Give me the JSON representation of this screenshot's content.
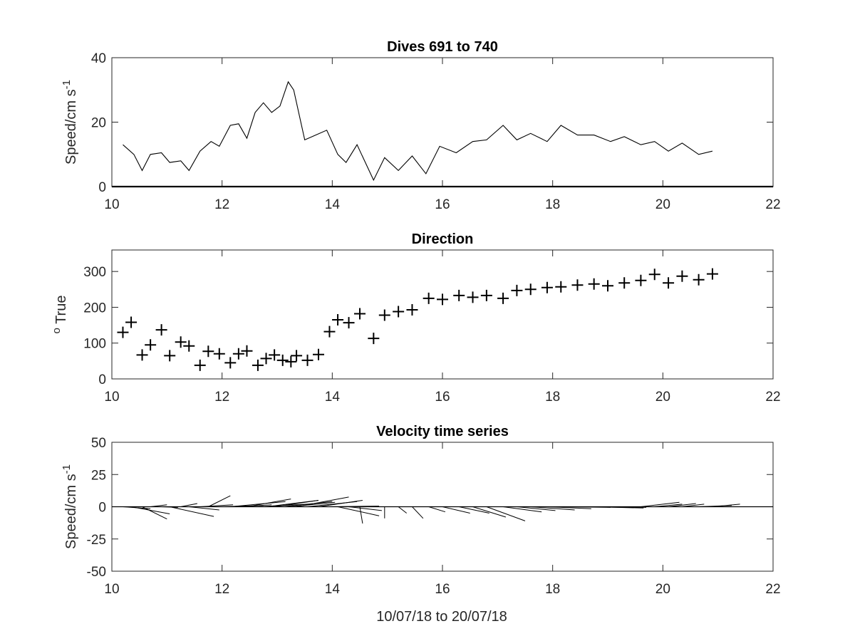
{
  "figure_xlabel": "10/07/18 to 20/07/18",
  "chart_data": [
    {
      "type": "line",
      "title": "Dives 691 to 740",
      "ylabel_main": "Speed/cm s",
      "ylabel_sup": "-1",
      "xlim": [
        10,
        22
      ],
      "ylim": [
        0,
        40
      ],
      "xticks": [
        10,
        12,
        14,
        16,
        18,
        20,
        22
      ],
      "yticks": [
        0,
        20,
        40
      ],
      "color": "#000000",
      "points": [
        [
          10.2,
          13
        ],
        [
          10.4,
          10
        ],
        [
          10.55,
          5
        ],
        [
          10.7,
          10
        ],
        [
          10.9,
          10.5
        ],
        [
          11.05,
          7.5
        ],
        [
          11.25,
          8
        ],
        [
          11.4,
          5
        ],
        [
          11.6,
          11
        ],
        [
          11.8,
          14
        ],
        [
          11.95,
          12.5
        ],
        [
          12.15,
          19
        ],
        [
          12.3,
          19.5
        ],
        [
          12.45,
          15
        ],
        [
          12.6,
          23
        ],
        [
          12.75,
          26
        ],
        [
          12.9,
          23
        ],
        [
          13.05,
          25
        ],
        [
          13.2,
          32.5
        ],
        [
          13.3,
          30
        ],
        [
          13.5,
          14.5
        ],
        [
          13.7,
          16
        ],
        [
          13.9,
          17.5
        ],
        [
          14.1,
          10
        ],
        [
          14.25,
          7.5
        ],
        [
          14.45,
          13
        ],
        [
          14.75,
          2
        ],
        [
          14.95,
          9
        ],
        [
          15.2,
          5
        ],
        [
          15.45,
          9.5
        ],
        [
          15.7,
          4
        ],
        [
          15.95,
          12.5
        ],
        [
          16.25,
          10.5
        ],
        [
          16.55,
          14
        ],
        [
          16.8,
          14.5
        ],
        [
          17.1,
          19
        ],
        [
          17.35,
          14.5
        ],
        [
          17.6,
          16.5
        ],
        [
          17.9,
          14
        ],
        [
          18.15,
          19
        ],
        [
          18.45,
          16
        ],
        [
          18.75,
          16
        ],
        [
          19.05,
          14
        ],
        [
          19.3,
          15.5
        ],
        [
          19.6,
          13
        ],
        [
          19.85,
          14
        ],
        [
          20.1,
          11
        ],
        [
          20.35,
          13.5
        ],
        [
          20.65,
          10
        ],
        [
          20.9,
          11
        ]
      ]
    },
    {
      "type": "scatter",
      "title": "Direction",
      "ylabel_main": "True",
      "ylabel_sup": "o",
      "xlim": [
        10,
        22
      ],
      "ylim": [
        0,
        360
      ],
      "xticks": [
        10,
        12,
        14,
        16,
        18,
        20,
        22
      ],
      "yticks": [
        0,
        100,
        200,
        300
      ],
      "marker": "+",
      "color": "#000000",
      "points": [
        [
          10.2,
          130
        ],
        [
          10.35,
          158
        ],
        [
          10.55,
          67
        ],
        [
          10.7,
          95
        ],
        [
          10.9,
          137
        ],
        [
          11.05,
          65
        ],
        [
          11.25,
          103
        ],
        [
          11.4,
          92
        ],
        [
          11.6,
          38
        ],
        [
          11.75,
          77
        ],
        [
          11.95,
          70
        ],
        [
          12.15,
          45
        ],
        [
          12.3,
          70
        ],
        [
          12.45,
          78
        ],
        [
          12.65,
          38
        ],
        [
          12.8,
          57
        ],
        [
          12.95,
          67
        ],
        [
          13.1,
          52
        ],
        [
          13.25,
          48
        ],
        [
          13.35,
          65
        ],
        [
          13.55,
          52
        ],
        [
          13.75,
          68
        ],
        [
          13.95,
          132
        ],
        [
          14.1,
          165
        ],
        [
          14.3,
          157
        ],
        [
          14.5,
          182
        ],
        [
          14.75,
          113
        ],
        [
          14.95,
          178
        ],
        [
          15.2,
          188
        ],
        [
          15.45,
          193
        ],
        [
          15.75,
          225
        ],
        [
          16.0,
          222
        ],
        [
          16.3,
          233
        ],
        [
          16.55,
          228
        ],
        [
          16.8,
          233
        ],
        [
          17.1,
          225
        ],
        [
          17.35,
          247
        ],
        [
          17.6,
          250
        ],
        [
          17.9,
          255
        ],
        [
          18.15,
          257
        ],
        [
          18.45,
          262
        ],
        [
          18.75,
          265
        ],
        [
          19.0,
          260
        ],
        [
          19.3,
          268
        ],
        [
          19.6,
          275
        ],
        [
          19.85,
          292
        ],
        [
          20.1,
          268
        ],
        [
          20.35,
          287
        ],
        [
          20.65,
          277
        ],
        [
          20.9,
          293
        ]
      ]
    },
    {
      "type": "quiver",
      "title": "Velocity time series",
      "ylabel_main": "Speed/cm s",
      "ylabel_sup": "-1",
      "xlim": [
        10,
        22
      ],
      "ylim": [
        -50,
        50
      ],
      "xticks": [
        10,
        12,
        14,
        16,
        18,
        20,
        22
      ],
      "yticks": [
        50,
        25,
        0,
        -25,
        -50
      ],
      "ytick_labels": [
        "50",
        "25",
        "0",
        "-25",
        "-50"
      ],
      "color": "#000000",
      "baseline": 0,
      "vectors": [
        [
          10.2,
          0.5,
          -1.5
        ],
        [
          10.35,
          0.7,
          -5.5
        ],
        [
          10.55,
          0.45,
          -9.5
        ],
        [
          10.7,
          0.3,
          1.5
        ],
        [
          10.9,
          0.3,
          -0.5
        ],
        [
          11.05,
          0.8,
          -7.5
        ],
        [
          11.25,
          0.3,
          2.5
        ],
        [
          11.4,
          0.55,
          -2.5
        ],
        [
          11.6,
          0.6,
          1.5
        ],
        [
          11.75,
          0.4,
          8.5
        ],
        [
          11.95,
          0.8,
          1
        ],
        [
          12.15,
          1.0,
          4
        ],
        [
          12.3,
          0.6,
          1.5
        ],
        [
          12.45,
          0.8,
          6
        ],
        [
          12.65,
          0.9,
          2
        ],
        [
          12.8,
          0.95,
          5
        ],
        [
          12.95,
          0.8,
          5
        ],
        [
          13.1,
          0.9,
          4
        ],
        [
          13.25,
          0.8,
          3.5
        ],
        [
          13.35,
          0.95,
          7.5
        ],
        [
          13.55,
          0.9,
          4
        ],
        [
          13.75,
          0.8,
          5
        ],
        [
          13.95,
          0.9,
          0.5
        ],
        [
          14.1,
          0.75,
          -7
        ],
        [
          14.3,
          0.6,
          -3
        ],
        [
          14.5,
          0.05,
          -13
        ],
        [
          14.75,
          0.05,
          0
        ],
        [
          14.95,
          0,
          -9
        ],
        [
          15.2,
          0.15,
          -5
        ],
        [
          15.45,
          0.2,
          -9
        ],
        [
          15.75,
          0.3,
          -4
        ],
        [
          16.0,
          0.5,
          -5
        ],
        [
          16.3,
          0.55,
          -5
        ],
        [
          16.55,
          0.6,
          -8
        ],
        [
          16.8,
          0.7,
          -11
        ],
        [
          17.1,
          0.7,
          -4
        ],
        [
          17.35,
          0.7,
          -3
        ],
        [
          17.6,
          0.8,
          -2.5
        ],
        [
          17.9,
          0.8,
          -1.5
        ],
        [
          18.15,
          0.9,
          -0.5
        ],
        [
          18.45,
          0.9,
          -0.5
        ],
        [
          18.75,
          0.9,
          -1
        ],
        [
          19.0,
          0.7,
          -0.5
        ],
        [
          19.3,
          0.5,
          0
        ],
        [
          19.6,
          0.7,
          3.5
        ],
        [
          19.85,
          0.5,
          2
        ],
        [
          20.1,
          0.5,
          2.5
        ],
        [
          20.35,
          0.4,
          2
        ],
        [
          20.65,
          0.6,
          1
        ],
        [
          20.9,
          0.5,
          2
        ]
      ]
    }
  ]
}
